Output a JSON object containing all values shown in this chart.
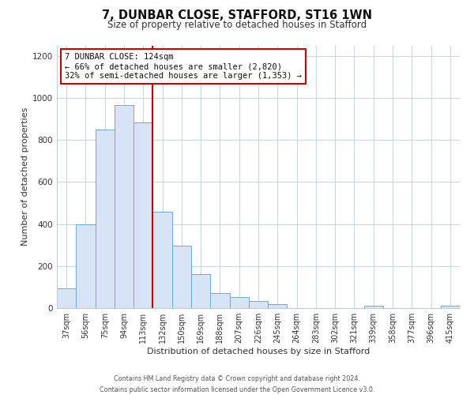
{
  "title_line1": "7, DUNBAR CLOSE, STAFFORD, ST16 1WN",
  "title_line2": "Size of property relative to detached houses in Stafford",
  "xlabel": "Distribution of detached houses by size in Stafford",
  "ylabel": "Number of detached properties",
  "bar_labels": [
    "37sqm",
    "56sqm",
    "75sqm",
    "94sqm",
    "113sqm",
    "132sqm",
    "150sqm",
    "169sqm",
    "188sqm",
    "207sqm",
    "226sqm",
    "245sqm",
    "264sqm",
    "283sqm",
    "302sqm",
    "321sqm",
    "339sqm",
    "358sqm",
    "377sqm",
    "396sqm",
    "415sqm"
  ],
  "bar_values": [
    95,
    400,
    848,
    965,
    883,
    460,
    297,
    160,
    72,
    52,
    32,
    18,
    0,
    0,
    0,
    0,
    10,
    0,
    0,
    0,
    10
  ],
  "bar_color": "#d6e4f5",
  "bar_edge_color": "#6aaad4",
  "vline_x_idx": 5,
  "vline_color": "#cc0000",
  "annotation_title": "7 DUNBAR CLOSE: 124sqm",
  "annotation_line1": "← 66% of detached houses are smaller (2,820)",
  "annotation_line2": "32% of semi-detached houses are larger (1,353) →",
  "annotation_box_color": "#ffffff",
  "annotation_box_edge_color": "#cc0000",
  "ylim": [
    0,
    1250
  ],
  "yticks": [
    0,
    200,
    400,
    600,
    800,
    1000,
    1200
  ],
  "footer_line1": "Contains HM Land Registry data © Crown copyright and database right 2024.",
  "footer_line2": "Contains public sector information licensed under the Open Government Licence v3.0.",
  "bg_color": "#ffffff",
  "grid_color": "#c8d8e8",
  "title1_fontsize": 10.5,
  "title2_fontsize": 8.5,
  "ylabel_fontsize": 8,
  "xlabel_fontsize": 8,
  "tick_fontsize": 7,
  "annotation_fontsize": 7.5,
  "footer_fontsize": 5.8
}
